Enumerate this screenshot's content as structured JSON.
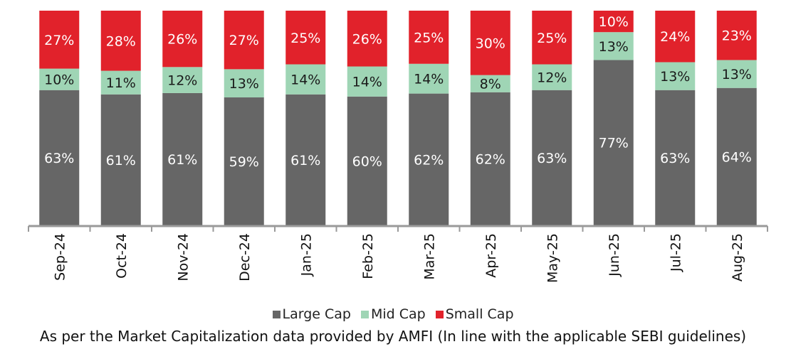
{
  "chart_data": {
    "type": "bar",
    "stacked": true,
    "percent_stacked": true,
    "categories": [
      "Sep-24",
      "Oct-24",
      "Nov-24",
      "Dec-24",
      "Jan-25",
      "Feb-25",
      "Mar-25",
      "Apr-25",
      "May-25",
      "Jun-25",
      "Jul-25",
      "Aug-25"
    ],
    "series": [
      {
        "name": "Large Cap",
        "color": "#666666",
        "values": [
          63,
          61,
          61,
          59,
          61,
          60,
          62,
          62,
          63,
          77,
          63,
          64
        ]
      },
      {
        "name": "Mid Cap",
        "color": "#9fd5b5",
        "values": [
          10,
          11,
          12,
          13,
          14,
          14,
          14,
          8,
          12,
          13,
          13,
          13
        ]
      },
      {
        "name": "Small Cap",
        "color": "#e1222b",
        "values": [
          27,
          28,
          26,
          27,
          25,
          26,
          25,
          30,
          25,
          10,
          24,
          23
        ]
      }
    ],
    "value_suffix": "%",
    "ylim": [
      0,
      100
    ],
    "grid": false,
    "legend_position": "bottom",
    "xlabel": "",
    "ylabel": ""
  },
  "footnote": "As per the Market Capitalization data provided by AMFI (In line with the applicable SEBI guidelines)"
}
